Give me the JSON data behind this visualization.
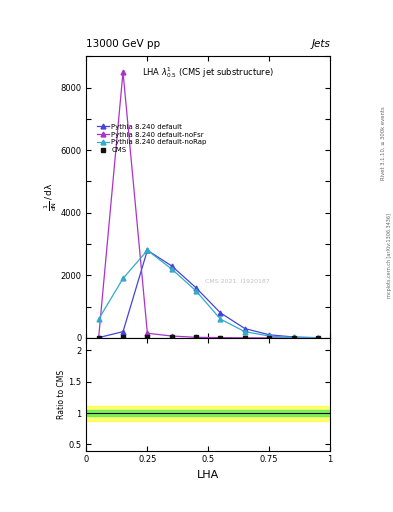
{
  "title_top": "13000 GeV pp",
  "title_right": "Jets",
  "watermark": "CMS 2021  I1920187",
  "right_label_top": "Rivet 3.1.10, ≥ 300k events",
  "right_label_bot": "mcplots.cern.ch [arXiv:1306.3436]",
  "cms_x": [
    0.05,
    0.15,
    0.25,
    0.35,
    0.45,
    0.55,
    0.65,
    0.75,
    0.85,
    0.95
  ],
  "cms_y": [
    5,
    20,
    40,
    30,
    20,
    10,
    5,
    2,
    1,
    0.5
  ],
  "default_x": [
    0.05,
    0.15,
    0.25,
    0.35,
    0.45,
    0.55,
    0.65,
    0.75,
    0.85,
    0.95
  ],
  "default_y": [
    10,
    200,
    2800,
    2300,
    1600,
    800,
    300,
    100,
    30,
    8
  ],
  "noFsr_x": [
    0.05,
    0.15,
    0.25,
    0.35,
    0.45,
    0.55,
    0.65,
    0.75,
    0.85,
    0.95
  ],
  "noFsr_y": [
    10,
    8500,
    150,
    60,
    20,
    10,
    3,
    1,
    0.5,
    0.1
  ],
  "noRap_x": [
    0.05,
    0.15,
    0.25,
    0.35,
    0.45,
    0.55,
    0.65,
    0.75,
    0.85,
    0.95
  ],
  "noRap_y": [
    600,
    1900,
    2800,
    2200,
    1500,
    600,
    200,
    60,
    15,
    3
  ],
  "color_default": "#4444dd",
  "color_noFsr": "#aa33cc",
  "color_noRap": "#33aacc",
  "color_cms": "#111111",
  "ylim_main": [
    0,
    9000
  ],
  "ylim_ratio": [
    0.4,
    2.2
  ],
  "xlim": [
    0,
    1
  ],
  "yticks_main": [
    0,
    1000,
    2000,
    3000,
    4000,
    5000,
    6000,
    7000,
    8000,
    9000
  ],
  "yticks_ratio": [
    0.5,
    1.0,
    1.5,
    2.0
  ],
  "xticks": [
    0.0,
    0.25,
    0.5,
    0.75,
    1.0
  ],
  "xticklabels": [
    "0",
    "0.25",
    "0.5",
    "0.75",
    "1"
  ],
  "ratio_green_band": [
    0.95,
    1.05
  ],
  "ratio_yellow_band": [
    0.88,
    1.12
  ]
}
